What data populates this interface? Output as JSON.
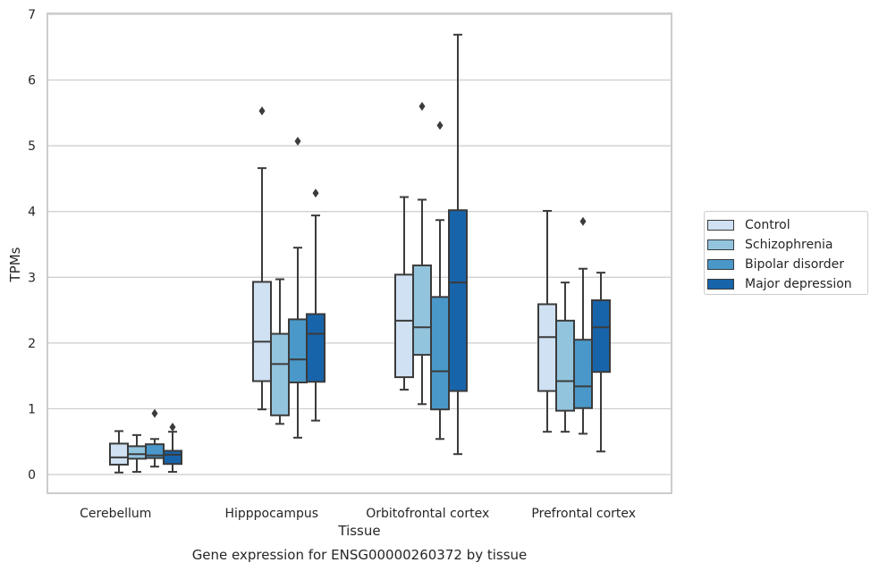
{
  "chart_data": {
    "type": "box",
    "xlabel": "Tissue",
    "ylabel": "TPMs",
    "caption": "Gene expression for ENSG00000260372 by tissue",
    "ylim": [
      -0.3,
      7.0
    ],
    "yticks": [
      0,
      1,
      2,
      3,
      4,
      5,
      6,
      7
    ],
    "grid": "horizontal",
    "legend_position": "right",
    "categories": [
      "Cerebellum",
      "Hipppocampus",
      "Orbitofrontal cortex",
      "Prefrontal cortex"
    ],
    "series": [
      {
        "name": "Control",
        "color": "#cfe1f2",
        "boxes": [
          {
            "whisker_low": 0.03,
            "q1": 0.15,
            "median": 0.26,
            "q3": 0.47,
            "whisker_high": 0.66,
            "outliers": []
          },
          {
            "whisker_low": 0.99,
            "q1": 1.42,
            "median": 2.02,
            "q3": 2.93,
            "whisker_high": 4.66,
            "outliers": [
              5.53
            ]
          },
          {
            "whisker_low": 1.29,
            "q1": 1.48,
            "median": 2.34,
            "q3": 3.04,
            "whisker_high": 4.22,
            "outliers": []
          },
          {
            "whisker_low": 0.65,
            "q1": 1.27,
            "median": 2.09,
            "q3": 2.59,
            "whisker_high": 4.01,
            "outliers": []
          }
        ]
      },
      {
        "name": "Schizophrenia",
        "color": "#93c4de",
        "boxes": [
          {
            "whisker_low": 0.04,
            "q1": 0.24,
            "median": 0.31,
            "q3": 0.43,
            "whisker_high": 0.6,
            "outliers": []
          },
          {
            "whisker_low": 0.77,
            "q1": 0.9,
            "median": 1.68,
            "q3": 2.14,
            "whisker_high": 2.97,
            "outliers": []
          },
          {
            "whisker_low": 1.07,
            "q1": 1.82,
            "median": 2.24,
            "q3": 3.18,
            "whisker_high": 4.18,
            "outliers": [
              5.6
            ]
          },
          {
            "whisker_low": 0.65,
            "q1": 0.97,
            "median": 1.42,
            "q3": 2.34,
            "whisker_high": 2.92,
            "outliers": []
          }
        ]
      },
      {
        "name": "Bipolar disorder",
        "color": "#4a98c9",
        "boxes": [
          {
            "whisker_low": 0.12,
            "q1": 0.25,
            "median": 0.29,
            "q3": 0.46,
            "whisker_high": 0.54,
            "outliers": [
              0.93
            ]
          },
          {
            "whisker_low": 0.56,
            "q1": 1.4,
            "median": 1.75,
            "q3": 2.36,
            "whisker_high": 3.45,
            "outliers": [
              5.07
            ]
          },
          {
            "whisker_low": 0.54,
            "q1": 0.99,
            "median": 1.57,
            "q3": 2.7,
            "whisker_high": 3.87,
            "outliers": [
              5.31
            ]
          },
          {
            "whisker_low": 0.62,
            "q1": 1.01,
            "median": 1.34,
            "q3": 2.05,
            "whisker_high": 3.13,
            "outliers": [
              3.85
            ]
          }
        ]
      },
      {
        "name": "Major depression",
        "color": "#1764ab",
        "boxes": [
          {
            "whisker_low": 0.04,
            "q1": 0.16,
            "median": 0.3,
            "q3": 0.36,
            "whisker_high": 0.65,
            "outliers": [
              0.72
            ]
          },
          {
            "whisker_low": 0.82,
            "q1": 1.41,
            "median": 2.14,
            "q3": 2.44,
            "whisker_high": 3.94,
            "outliers": [
              4.28
            ]
          },
          {
            "whisker_low": 0.31,
            "q1": 1.27,
            "median": 2.92,
            "q3": 4.02,
            "whisker_high": 6.69,
            "outliers": []
          },
          {
            "whisker_low": 0.35,
            "q1": 1.56,
            "median": 2.24,
            "q3": 2.65,
            "whisker_high": 3.07,
            "outliers": []
          }
        ]
      }
    ]
  }
}
